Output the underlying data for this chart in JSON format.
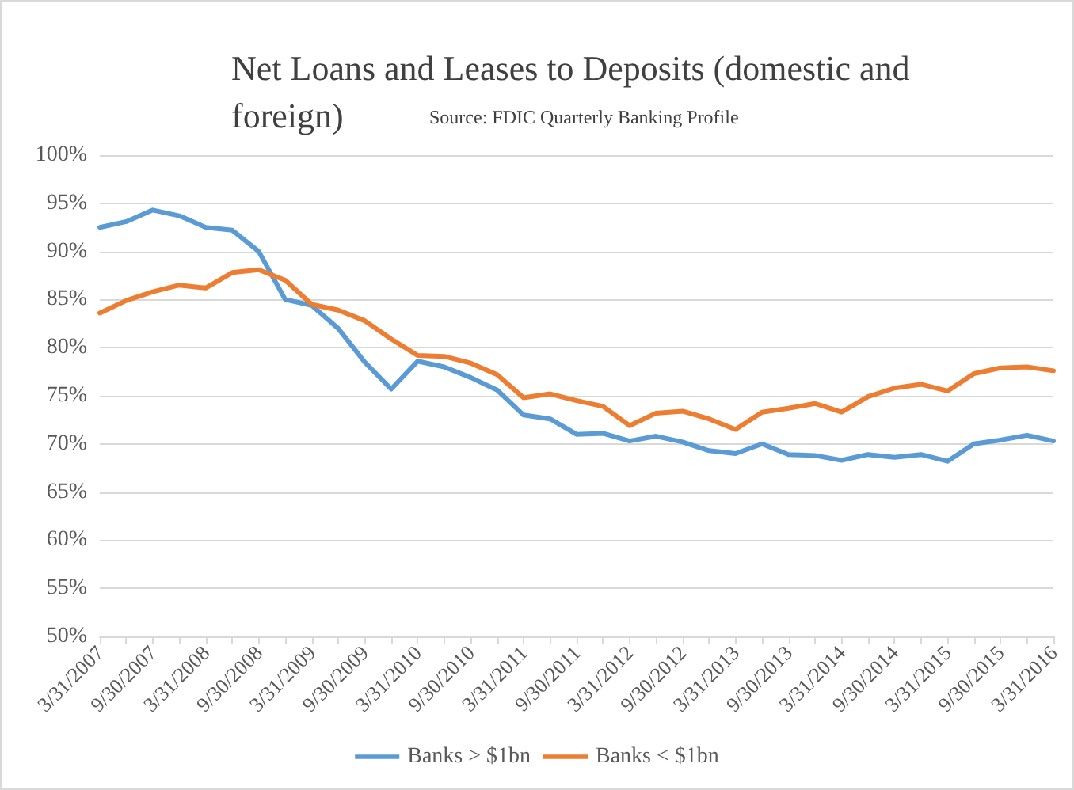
{
  "chart_data": {
    "type": "line",
    "title": "Net Loans and Leases to Deposits (domestic and foreign)",
    "subtitle": "Source: FDIC Quarterly Banking Profile",
    "categories": [
      "3/31/2007",
      null,
      "9/30/2007",
      null,
      "3/31/2008",
      null,
      "9/30/2008",
      null,
      "3/31/2009",
      null,
      "9/30/2009",
      null,
      "3/31/2010",
      null,
      "9/30/2010",
      null,
      "3/31/2011",
      null,
      "9/30/2011",
      null,
      "3/31/2012",
      null,
      "9/30/2012",
      null,
      "3/31/2013",
      null,
      "9/30/2013",
      null,
      "3/31/2014",
      null,
      "9/30/2014",
      null,
      "3/31/2015",
      null,
      "9/30/2015",
      null,
      "3/31/2016"
    ],
    "series": [
      {
        "name": "Banks > $1bn",
        "color": "#5b9bd5",
        "values": [
          92.5,
          93.1,
          94.3,
          93.7,
          92.5,
          92.2,
          90.0,
          85.0,
          84.4,
          82.0,
          78.5,
          75.7,
          78.6,
          78.0,
          76.9,
          75.6,
          73.0,
          72.6,
          71.0,
          71.1,
          70.3,
          70.8,
          70.2,
          69.3,
          69.0,
          70.0,
          68.9,
          68.8,
          68.3,
          68.9,
          68.6,
          68.9,
          68.2,
          70.0,
          70.4,
          70.9,
          70.3
        ]
      },
      {
        "name": "Banks < $1bn",
        "color": "#ed7d31",
        "values": [
          83.6,
          84.9,
          85.8,
          86.5,
          86.2,
          87.8,
          88.1,
          87.0,
          84.5,
          83.9,
          82.8,
          80.9,
          79.2,
          79.1,
          78.4,
          77.2,
          74.8,
          75.2,
          74.5,
          73.9,
          71.9,
          73.2,
          73.4,
          72.6,
          71.5,
          73.3,
          73.7,
          74.2,
          73.3,
          74.9,
          75.8,
          76.2,
          75.5,
          77.3,
          77.9,
          78.0,
          77.6
        ]
      }
    ],
    "ylim": [
      50,
      100
    ],
    "yticks": [
      {
        "value": 50,
        "label": "50%"
      },
      {
        "value": 55,
        "label": "55%"
      },
      {
        "value": 60,
        "label": "60%"
      },
      {
        "value": 65,
        "label": "65%"
      },
      {
        "value": 70,
        "label": "70%"
      },
      {
        "value": 75,
        "label": "75%"
      },
      {
        "value": 80,
        "label": "80%"
      },
      {
        "value": 85,
        "label": "85%"
      },
      {
        "value": 90,
        "label": "90%"
      },
      {
        "value": 95,
        "label": "95%"
      },
      {
        "value": 100,
        "label": "100%"
      }
    ],
    "grid": "y",
    "legend": "bottom",
    "marker": "none",
    "line_style": "solid"
  }
}
